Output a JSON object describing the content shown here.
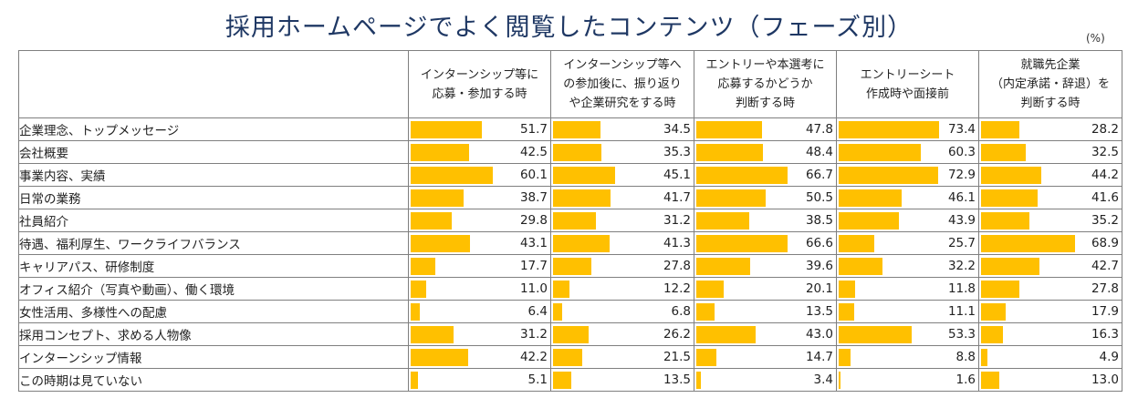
{
  "title": "採用ホームページでよく閲覧したコンテンツ（フェーズ別）",
  "unit": "(%)",
  "chart_data": {
    "type": "bar",
    "title": "採用ホームページでよく閲覧したコンテンツ（フェーズ別）",
    "unit": "(%)",
    "ylim": [
      0,
      100
    ],
    "categories": [
      "企業理念、トップメッセージ",
      "会社概要",
      "事業内容、実績",
      "日常の業務",
      "社員紹介",
      "待遇、福利厚生、ワークライフバランス",
      "キャリアパス、研修制度",
      "オフィス紹介（写真や動画）、働く環境",
      "女性活用、多様性への配慮",
      "採用コンセプト、求める人物像",
      "インターンシップ情報",
      "この時期は見ていない"
    ],
    "series": [
      {
        "name": "インターンシップ等に応募・参加する時",
        "header_lines": [
          "インターンシップ等に",
          "応募・参加する時"
        ],
        "values": [
          51.7,
          42.5,
          60.1,
          38.7,
          29.8,
          43.1,
          17.7,
          11.0,
          6.4,
          31.2,
          42.2,
          5.1
        ]
      },
      {
        "name": "インターンシップ等への参加後に、振り返りや企業研究をする時",
        "header_lines": [
          "インターンシップ等へ",
          "の参加後に、振り返り",
          "や企業研究をする時"
        ],
        "values": [
          34.5,
          35.3,
          45.1,
          41.7,
          31.2,
          41.3,
          27.8,
          12.2,
          6.8,
          26.2,
          21.5,
          13.5
        ]
      },
      {
        "name": "エントリーや本選考に応募するかどうか判断する時",
        "header_lines": [
          "エントリーや本選考に",
          "応募するかどうか",
          "判断する時"
        ],
        "values": [
          47.8,
          48.4,
          66.7,
          50.5,
          38.5,
          66.6,
          39.6,
          20.1,
          13.5,
          43.0,
          14.7,
          3.4
        ]
      },
      {
        "name": "エントリーシート作成時や面接前",
        "header_lines": [
          "エントリーシート",
          "作成時や面接前"
        ],
        "values": [
          73.4,
          60.3,
          72.9,
          46.1,
          43.9,
          25.7,
          32.2,
          11.8,
          11.1,
          53.3,
          8.8,
          1.6
        ]
      },
      {
        "name": "就職先企業（内定承諾・辞退）を判断する時",
        "header_lines": [
          "就職先企業",
          "（内定承諾・辞退）を",
          "判断する時"
        ],
        "values": [
          28.2,
          32.5,
          44.2,
          41.6,
          35.2,
          68.9,
          42.7,
          27.8,
          17.9,
          16.3,
          4.9,
          13.0
        ]
      }
    ],
    "bar_color": "#ffc000"
  }
}
